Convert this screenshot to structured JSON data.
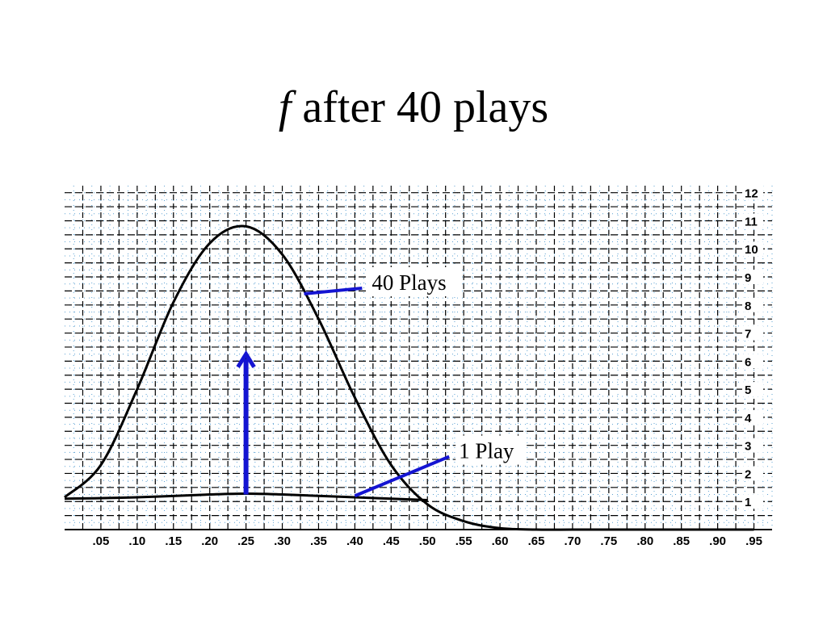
{
  "title": {
    "symbol": "f",
    "text": "after 40 plays"
  },
  "colors": {
    "curve": "#000000",
    "annotation": "#1414d2",
    "grid": "#000000",
    "minor_grid": "#5aa0d2",
    "background": "#ffffff"
  },
  "chart_data": {
    "type": "line",
    "xlim": [
      0,
      0.975
    ],
    "ylim": [
      0,
      12.25
    ],
    "grid": true,
    "x_ticks": [
      0.05,
      0.1,
      0.15,
      0.2,
      0.25,
      0.3,
      0.35,
      0.4,
      0.45,
      0.5,
      0.55,
      0.6,
      0.65,
      0.7,
      0.75,
      0.8,
      0.85,
      0.9,
      0.95
    ],
    "x_tick_labels": [
      ".05",
      ".10",
      ".15",
      ".20",
      ".25",
      ".30",
      ".35",
      ".40",
      ".45",
      ".50",
      ".55",
      ".60",
      ".65",
      ".70",
      ".75",
      ".80",
      ".85",
      ".90",
      ".95"
    ],
    "y_ticks": [
      1,
      2,
      3,
      4,
      5,
      6,
      7,
      8,
      9,
      10,
      11,
      12
    ],
    "y_tick_labels": [
      "1",
      "2",
      "3",
      "4",
      "5",
      "6",
      "7",
      "8",
      "9",
      "10",
      "11",
      "12"
    ],
    "series": [
      {
        "x": [
          0.0,
          0.05,
          0.1,
          0.15,
          0.2,
          0.25,
          0.3,
          0.35,
          0.4,
          0.45,
          0.5,
          0.55,
          0.6,
          0.65,
          0.7,
          0.75,
          0.8,
          0.85,
          0.9,
          0.95
        ],
        "y": [
          1.15,
          2.3,
          5.0,
          8.1,
          10.2,
          10.8,
          9.8,
          7.5,
          4.7,
          2.3,
          0.9,
          0.3,
          0.05,
          0.0,
          0.0,
          0.0,
          0.0,
          0.0,
          0.0,
          0.0
        ]
      },
      {
        "x": [
          0.0,
          0.1,
          0.2,
          0.25,
          0.3,
          0.4,
          0.45,
          0.5
        ],
        "y": [
          1.1,
          1.15,
          1.25,
          1.28,
          1.25,
          1.15,
          1.1,
          1.05
        ]
      }
    ],
    "annotations": [
      {
        "text": "40 Plays",
        "pointer_from": [
          0.41,
          8.6
        ],
        "pointer_to": [
          0.33,
          8.4
        ]
      },
      {
        "text": "1 Play",
        "pointer_from": [
          0.53,
          2.6
        ],
        "pointer_to": [
          0.4,
          1.2
        ]
      }
    ],
    "arrow": {
      "x": 0.25,
      "y_from": 1.25,
      "y_to": 6.25
    }
  }
}
